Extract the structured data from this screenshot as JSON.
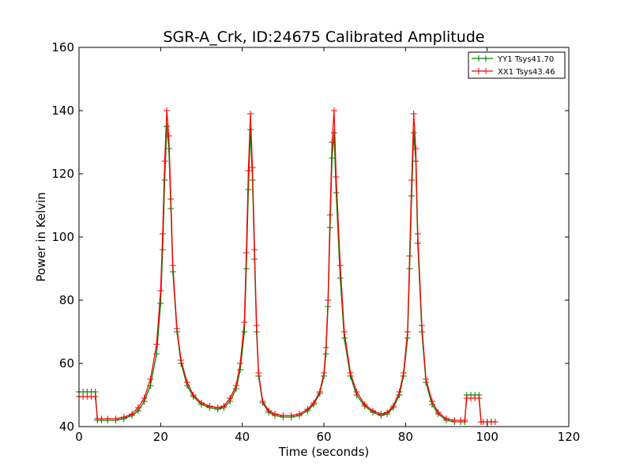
{
  "chart_data": {
    "type": "line",
    "title": "SGR-A_Crk, ID:24675 Calibrated Amplitude",
    "xlabel": "Time (seconds)",
    "ylabel": "Power in Kelvin",
    "xlim": [
      0,
      120
    ],
    "ylim": [
      40,
      160
    ],
    "x_ticks": [
      0,
      20,
      40,
      60,
      80,
      100,
      120
    ],
    "y_ticks": [
      40,
      60,
      80,
      100,
      120,
      140,
      160
    ],
    "x_tick_labels": [
      "0",
      "20",
      "40",
      "60",
      "80",
      "100",
      "120"
    ],
    "y_tick_labels": [
      "40",
      "60",
      "80",
      "100",
      "120",
      "140",
      "160"
    ],
    "grid": false,
    "legend_position": "top-right",
    "marker": "+",
    "series": [
      {
        "name": "YY1 Tsys41.70",
        "color": "#008000",
        "x": [
          0,
          1,
          2,
          3,
          4,
          4.5,
          5.5,
          7,
          9,
          11,
          13,
          14.5,
          16,
          17.5,
          19,
          20,
          20.5,
          21,
          21.5,
          22,
          22.5,
          23,
          24,
          25,
          26.5,
          28,
          30,
          32,
          34,
          35.5,
          37,
          38.5,
          39.5,
          40.5,
          41,
          41.5,
          42,
          42.5,
          43,
          43.5,
          44,
          45,
          46.5,
          48,
          50,
          52,
          54,
          56,
          57.5,
          59,
          60,
          60.5,
          61,
          61.5,
          62,
          62.5,
          63,
          64,
          65,
          66.5,
          68,
          70,
          72,
          74,
          75.5,
          77,
          78.5,
          79.5,
          80.5,
          81,
          81.5,
          82,
          82.5,
          83,
          84,
          85,
          86.5,
          88,
          90,
          92,
          93.5,
          94.5,
          95,
          96,
          97,
          98,
          98.5,
          99,
          100,
          101,
          102
        ],
        "values": [
          51,
          51,
          51,
          51,
          51,
          42,
          42,
          42,
          42,
          42.5,
          43.5,
          45,
          48,
          53,
          63,
          79,
          96,
          118,
          135,
          128,
          109,
          89,
          70,
          60,
          53,
          49.5,
          47,
          46,
          45.5,
          46,
          48,
          52,
          58,
          70,
          90,
          115,
          134,
          118,
          93,
          70,
          56,
          47.5,
          44.5,
          43.5,
          43,
          43,
          43.5,
          45,
          47,
          50.5,
          56,
          63,
          78,
          103,
          125,
          133,
          114,
          87,
          68,
          56,
          50,
          46.5,
          44.5,
          43.5,
          44,
          46,
          50,
          56,
          68,
          90,
          113,
          133,
          124,
          98,
          70,
          54,
          47,
          44,
          42,
          41.5,
          41.5,
          41.5,
          50,
          50,
          50,
          50,
          41.5,
          41.5,
          41.5,
          41.5,
          41.5
        ]
      },
      {
        "name": "XX1 Tsys43.46",
        "color": "#ff0000",
        "x": [
          0,
          1,
          2,
          3,
          4,
          4.5,
          5.5,
          7,
          9,
          11,
          13,
          14.5,
          16,
          17.5,
          19,
          20,
          20.5,
          21,
          21.5,
          22,
          22.5,
          23,
          24,
          25,
          26.5,
          28,
          30,
          32,
          34,
          35.5,
          37,
          38.5,
          39.5,
          40.5,
          41,
          41.5,
          42,
          42.5,
          43,
          43.5,
          44,
          45,
          46.5,
          48,
          50,
          52,
          54,
          56,
          57.5,
          59,
          60,
          60.5,
          61,
          61.5,
          62,
          62.5,
          63,
          64,
          65,
          66.5,
          68,
          70,
          72,
          74,
          75.5,
          77,
          78.5,
          79.5,
          80.5,
          81,
          81.5,
          82,
          82.5,
          83,
          84,
          85,
          86.5,
          88,
          90,
          92,
          93.5,
          94.5,
          95,
          96,
          97,
          98,
          98.5,
          99,
          100,
          101,
          102
        ],
        "values": [
          49.5,
          49.5,
          49.5,
          49.5,
          49.5,
          42.5,
          42.5,
          42.5,
          42.5,
          43,
          44,
          46,
          49,
          55,
          66,
          83,
          101,
          124,
          140,
          132,
          112,
          91,
          71,
          61,
          54,
          50,
          47.5,
          46.5,
          46,
          46.5,
          49,
          53,
          60,
          73,
          95,
          121,
          139,
          122,
          96,
          72,
          57,
          48,
          45,
          44,
          43.5,
          43.5,
          44,
          45.5,
          47.5,
          51,
          57,
          65,
          80,
          107,
          130,
          140,
          119,
          91,
          70,
          57,
          51,
          47,
          45,
          44,
          44.5,
          46.5,
          51,
          57,
          70,
          94,
          118,
          139,
          128,
          101,
          72,
          55,
          48,
          44.5,
          42.5,
          42,
          42,
          42,
          49,
          49,
          49,
          49,
          41.5,
          41.5,
          41.5,
          41.5,
          41.5
        ]
      }
    ]
  }
}
